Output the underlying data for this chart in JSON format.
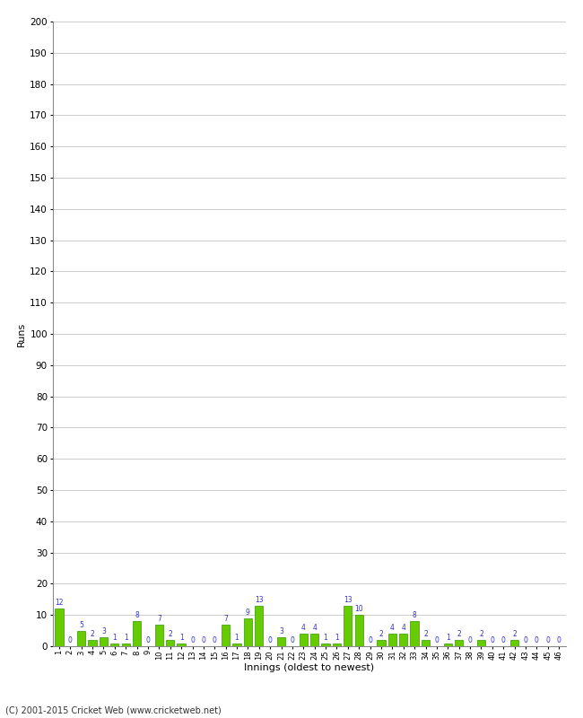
{
  "xlabel": "Innings (oldest to newest)",
  "ylabel": "Runs",
  "values": [
    12,
    0,
    5,
    2,
    3,
    1,
    1,
    8,
    0,
    7,
    2,
    1,
    0,
    0,
    0,
    7,
    1,
    9,
    13,
    0,
    3,
    0,
    4,
    4,
    1,
    1,
    13,
    10,
    0,
    2,
    4,
    4,
    8,
    2,
    0,
    1,
    2,
    0,
    2,
    0,
    0,
    2,
    0,
    0,
    0,
    0
  ],
  "innings": [
    1,
    2,
    3,
    4,
    5,
    6,
    7,
    8,
    9,
    10,
    11,
    12,
    13,
    14,
    15,
    16,
    17,
    18,
    19,
    20,
    21,
    22,
    23,
    24,
    25,
    26,
    27,
    28,
    29,
    30,
    31,
    32,
    33,
    34,
    35,
    36,
    37,
    38,
    39,
    40,
    41,
    42,
    43,
    44,
    45,
    46
  ],
  "bar_color": "#66cc00",
  "bar_edge_color": "#339900",
  "label_color": "#3333cc",
  "ylim": [
    0,
    200
  ],
  "yticks": [
    0,
    10,
    20,
    30,
    40,
    50,
    60,
    70,
    80,
    90,
    100,
    110,
    120,
    130,
    140,
    150,
    160,
    170,
    180,
    190,
    200
  ],
  "background_color": "#ffffff",
  "grid_color": "#cccccc",
  "footer_text": "(C) 2001-2015 Cricket Web (www.cricketweb.net)"
}
